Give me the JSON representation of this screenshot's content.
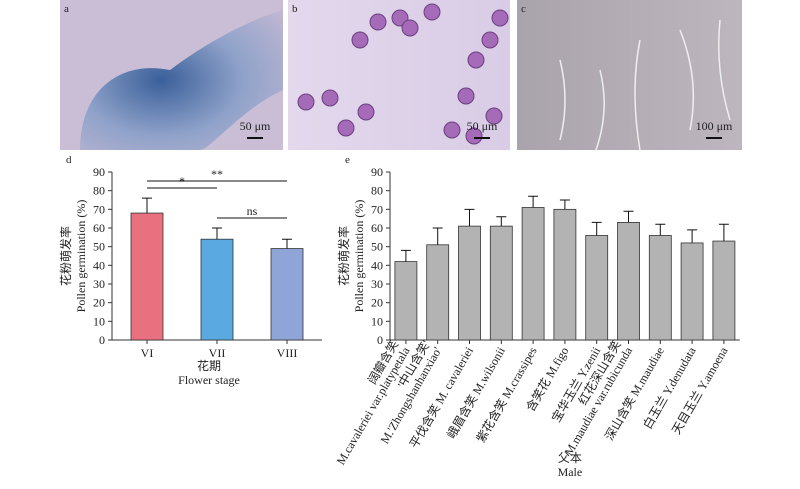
{
  "panels": [
    {
      "label": "a",
      "scale_bar": "50 μm"
    },
    {
      "label": "b",
      "scale_bar": "50 μm"
    },
    {
      "label": "c",
      "scale_bar": "100 μm"
    }
  ],
  "chart_data": [
    {
      "type": "bar",
      "panel": "d",
      "y_label": [
        "花粉萌发率",
        "Pollen germination (%)"
      ],
      "x_label": [
        "花期",
        "Flower stage"
      ],
      "categories": [
        [
          "VI"
        ],
        [
          "VII"
        ],
        [
          "VIII"
        ]
      ],
      "values": [
        68,
        54,
        49
      ],
      "errors": [
        8,
        6,
        5
      ],
      "colors": [
        "#e8707f",
        "#5aa9e0",
        "#8fa5d8"
      ],
      "ylim": [
        0,
        90
      ],
      "yticks": [
        0,
        10,
        20,
        30,
        40,
        50,
        60,
        70,
        80,
        90
      ],
      "annotations": [
        {
          "text": "*",
          "between": [
            "VI",
            "VII"
          ]
        },
        {
          "text": "**",
          "between": [
            "VI",
            "VIII"
          ]
        },
        {
          "text": "ns",
          "between": [
            "VII",
            "VIII"
          ]
        }
      ]
    },
    {
      "type": "bar",
      "panel": "e",
      "y_label": [
        "花粉萌发率",
        "Pollen germination (%)"
      ],
      "x_label": [
        "父本",
        "Male"
      ],
      "categories": [
        [
          "阔瓣含笑",
          "M.cavaleriei var.platypetala"
        ],
        [
          "'中山含笑'",
          "M.'Zhongshanhanxiao'"
        ],
        [
          "平伐含笑 M. cavaleriei"
        ],
        [
          "峨眉含笑 M.wilsonii"
        ],
        [
          "紫花含笑 M.crassipes"
        ],
        [
          "含笑花 M.figo"
        ],
        [
          "宝华玉兰 Y.zenii"
        ],
        [
          "红花深山含笑",
          "M.maudiae var.rubicunda"
        ],
        [
          "深山含笑 M.maudiae"
        ],
        [
          "白玉兰 Y.denudata"
        ],
        [
          "天目玉兰 Y.amoena"
        ]
      ],
      "values": [
        42,
        51,
        61,
        61,
        71,
        70,
        56,
        63,
        56,
        52,
        53
      ],
      "errors": [
        6,
        9,
        9,
        5,
        6,
        5,
        7,
        6,
        6,
        7,
        9
      ],
      "color": "#b3b3b3",
      "ylim": [
        0,
        90
      ],
      "yticks": [
        0,
        10,
        20,
        30,
        40,
        50,
        60,
        70,
        80,
        90
      ]
    }
  ]
}
